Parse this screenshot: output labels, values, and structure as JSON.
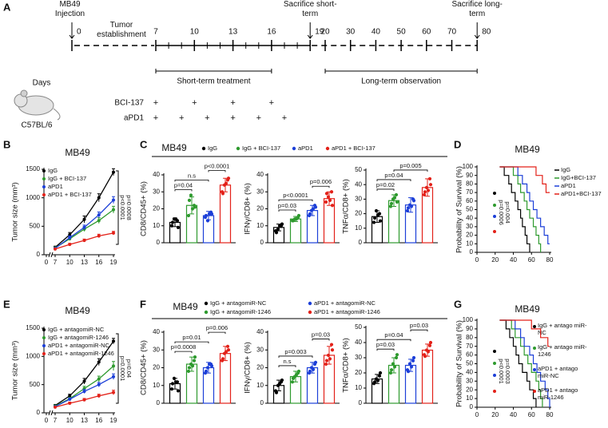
{
  "timeline": {
    "panel": "A",
    "days_label": "Days",
    "strain": "C57BL/6",
    "injection": {
      "label": "MB49 Injection",
      "day": 0
    },
    "establishment": "Tumor establishment",
    "ticks": [
      0,
      7,
      10,
      13,
      16,
      19,
      20,
      30,
      40,
      50,
      60,
      70,
      80
    ],
    "sacrifices": [
      {
        "label": "Sacrifice short-term",
        "day": 19
      },
      {
        "label": "Sacrifice long-term",
        "day": 80
      }
    ],
    "phases": [
      {
        "label": "Short-term treatment",
        "start": 7,
        "end": 16
      },
      {
        "label": "Long-term observation",
        "start": 20,
        "end": 80
      }
    ],
    "treatments": [
      {
        "label": "BCI-137",
        "mark": "+",
        "days": [
          7,
          10,
          13,
          16
        ]
      },
      {
        "label": "aPD1",
        "mark": "+",
        "days": [
          7,
          9,
          11,
          13,
          15,
          17
        ]
      }
    ]
  },
  "chart_data": [
    {
      "type": "line",
      "panel": "B",
      "title": "MB49",
      "ylabel": "Tumor size (mm³)",
      "x": [
        7,
        10,
        13,
        16,
        19
      ],
      "xlim": [
        0,
        19
      ],
      "xticks": [
        0,
        7,
        10,
        13,
        16,
        19
      ],
      "ylim": [
        0,
        1500
      ],
      "yticks": [
        0,
        500,
        1000,
        1500
      ],
      "series": [
        {
          "name": "IgG",
          "color": "#000000",
          "values": [
            130,
            350,
            620,
            1000,
            1450
          ],
          "errors": [
            20,
            40,
            60,
            70,
            60
          ]
        },
        {
          "name": "IgG + BCI-137",
          "color": "#2e9a2e",
          "values": [
            120,
            280,
            450,
            600,
            790
          ],
          "errors": [
            15,
            30,
            40,
            50,
            60
          ]
        },
        {
          "name": "aPD1",
          "color": "#1c3fd8",
          "values": [
            110,
            300,
            480,
            700,
            960
          ],
          "errors": [
            15,
            30,
            40,
            50,
            60
          ]
        },
        {
          "name": "aPD1 + BCI-137",
          "color": "#e32119",
          "values": [
            100,
            180,
            250,
            330,
            380
          ],
          "errors": [
            10,
            20,
            25,
            30,
            30
          ]
        }
      ],
      "annotations": [
        "p<0.0001",
        "p=0.0008"
      ]
    },
    {
      "type": "bar",
      "panel": "C",
      "title": "MB49",
      "groups": [
        {
          "name": "IgG",
          "color": "#000000"
        },
        {
          "name": "IgG + BCI-137",
          "color": "#2e9a2e"
        },
        {
          "name": "aPD1",
          "color": "#1c3fd8"
        },
        {
          "name": "aPD1 + BCI-137",
          "color": "#e32119"
        }
      ],
      "subplots": [
        {
          "ylabel": "CD8/CD45+ (%)",
          "ylim": [
            0,
            40
          ],
          "yticks": [
            0,
            10,
            20,
            30,
            40
          ],
          "values": [
            12,
            22,
            16,
            34
          ],
          "errors": [
            2.5,
            5,
            2.5,
            4
          ],
          "points": [
            [
              10,
              13,
              14,
              9,
              12,
              14
            ],
            [
              16,
              22,
              28,
              21,
              25,
              20
            ],
            [
              15,
              18,
              13,
              17,
              16,
              17
            ],
            [
              30,
              37,
              34,
              38,
              29,
              35
            ]
          ],
          "annotations": [
            "p=0.04",
            "n.s",
            "p<0.0001"
          ]
        },
        {
          "ylabel": "IFNγ/CD8+ (%)",
          "ylim": [
            0,
            40
          ],
          "yticks": [
            0,
            10,
            20,
            30,
            40
          ],
          "values": [
            9,
            14,
            19,
            26
          ],
          "errors": [
            2,
            1.5,
            3,
            4
          ],
          "points": [
            [
              7,
              10,
              8,
              11,
              6,
              10
            ],
            [
              13,
              15,
              14,
              16,
              13,
              14
            ],
            [
              16,
              22,
              19,
              21,
              17,
              20
            ],
            [
              24,
              30,
              27,
              22,
              29,
              25
            ]
          ],
          "annotations": [
            "p=0.03",
            "p<0.0001",
            "p=0.006"
          ]
        },
        {
          "ylabel": "TNFα/CD8+ (%)",
          "ylim": [
            0,
            50
          ],
          "yticks": [
            0,
            10,
            20,
            30,
            40,
            50
          ],
          "values": [
            18,
            29,
            26,
            38
          ],
          "errors": [
            4,
            4,
            5,
            6
          ],
          "points": [
            [
              14,
              20,
              22,
              15,
              17,
              19
            ],
            [
              25,
              33,
              30,
              28,
              27,
              31
            ],
            [
              22,
              30,
              26,
              29,
              24,
              25
            ],
            [
              33,
              44,
              38,
              40,
              35,
              36
            ]
          ],
          "annotations": [
            "p=0.02",
            "p=0.04",
            "p=0.005"
          ]
        }
      ]
    },
    {
      "type": "survival",
      "panel": "D",
      "title": "MB49",
      "ylabel": "Probability of Survival (%)",
      "xlim": [
        0,
        80
      ],
      "xticks": [
        0,
        20,
        40,
        60,
        80
      ],
      "ylim": [
        0,
        100
      ],
      "yticks": [
        0,
        10,
        20,
        30,
        40,
        50,
        60,
        70,
        80,
        90,
        100
      ],
      "series": [
        {
          "name": "IgG",
          "color": "#000000",
          "x": [
            25,
            30,
            35,
            38,
            42,
            45,
            48,
            50,
            53,
            55,
            58
          ],
          "values": [
            100,
            90,
            80,
            70,
            60,
            50,
            40,
            30,
            20,
            10,
            0
          ]
        },
        {
          "name": "IgG+BCI-137",
          "color": "#2e9a2e",
          "x": [
            25,
            40,
            45,
            48,
            52,
            55,
            58,
            62,
            65,
            68,
            70
          ],
          "values": [
            100,
            90,
            80,
            70,
            60,
            50,
            40,
            30,
            20,
            10,
            0
          ]
        },
        {
          "name": "aPD1",
          "color": "#1c3fd8",
          "x": [
            25,
            45,
            50,
            55,
            58,
            62,
            66,
            70,
            74,
            78,
            80
          ],
          "values": [
            100,
            90,
            80,
            70,
            60,
            50,
            40,
            30,
            20,
            10,
            10
          ]
        },
        {
          "name": "aPD1+BCI-137",
          "color": "#e32119",
          "x": [
            25,
            65,
            72,
            76,
            80
          ],
          "values": [
            100,
            90,
            80,
            70,
            70
          ]
        }
      ],
      "annotations": [
        "p=0.0006",
        "p=0.004"
      ]
    },
    {
      "type": "line",
      "panel": "E",
      "title": "MB49",
      "ylabel": "Tumor size (mm³)",
      "x": [
        7,
        10,
        13,
        16,
        19
      ],
      "xlim": [
        0,
        19
      ],
      "xticks": [
        0,
        7,
        10,
        13,
        16,
        19
      ],
      "ylim": [
        0,
        1500
      ],
      "yticks": [
        0,
        500,
        1000,
        1500
      ],
      "series": [
        {
          "name": "IgG + antagomiR-NC",
          "color": "#000000",
          "values": [
            130,
            300,
            560,
            900,
            1270
          ],
          "errors": [
            15,
            30,
            50,
            60,
            50
          ]
        },
        {
          "name": "IgG + antagomiR-1246",
          "color": "#2e9a2e",
          "values": [
            120,
            250,
            430,
            600,
            830
          ],
          "errors": [
            15,
            25,
            40,
            50,
            80
          ]
        },
        {
          "name": "aPD1 + antagomiR-NC",
          "color": "#1c3fd8",
          "values": [
            110,
            240,
            380,
            500,
            640
          ],
          "errors": [
            10,
            25,
            35,
            40,
            50
          ]
        },
        {
          "name": "aPD1 + antagomiR-1246",
          "color": "#e32119",
          "values": [
            100,
            170,
            230,
            300,
            360
          ],
          "errors": [
            10,
            20,
            25,
            30,
            40
          ]
        }
      ],
      "annotations": [
        "p=0.0001",
        "p=0.04"
      ]
    },
    {
      "type": "bar",
      "panel": "F",
      "title": "MB49",
      "groups": [
        {
          "name": "IgG + antagomiR-NC",
          "color": "#000000"
        },
        {
          "name": "IgG + antagomiR-1246",
          "color": "#2e9a2e"
        },
        {
          "name": "aPD1 + antagomiR-NC",
          "color": "#1c3fd8"
        },
        {
          "name": "aPD1 + antagomiR-1246",
          "color": "#e32119"
        }
      ],
      "subplots": [
        {
          "ylabel": "CD8/CD45+ (%)",
          "ylim": [
            0,
            40
          ],
          "yticks": [
            0,
            10,
            20,
            30,
            40
          ],
          "values": [
            11,
            22,
            20,
            28
          ],
          "errors": [
            3,
            4,
            3,
            4
          ],
          "points": [
            [
              8,
              12,
              14,
              7,
              11,
              12
            ],
            [
              18,
              24,
              22,
              26,
              20,
              21
            ],
            [
              17,
              22,
              20,
              21,
              18,
              22
            ],
            [
              24,
              32,
              28,
              30,
              25,
              29
            ]
          ],
          "annotations": [
            "p=0.0008",
            "p=0.01",
            "p=0.006"
          ]
        },
        {
          "ylabel": "IFNγ/CD8+ (%)",
          "ylim": [
            0,
            40
          ],
          "yticks": [
            0,
            10,
            20,
            30,
            40
          ],
          "values": [
            10,
            15,
            20,
            27
          ],
          "errors": [
            3,
            3,
            3,
            5
          ],
          "points": [
            [
              7,
              12,
              10,
              13,
              6,
              11
            ],
            [
              12,
              17,
              15,
              18,
              14,
              16
            ],
            [
              17,
              22,
              20,
              23,
              18,
              19
            ],
            [
              22,
              33,
              27,
              30,
              24,
              25
            ]
          ],
          "annotations": [
            "n.s",
            "p=0.003",
            "p=0.03"
          ]
        },
        {
          "ylabel": "TNFα/CD8+ (%)",
          "ylim": [
            0,
            50
          ],
          "yticks": [
            0,
            10,
            20,
            30,
            40,
            50
          ],
          "values": [
            16,
            25,
            25,
            35
          ],
          "errors": [
            3,
            5,
            4,
            4
          ],
          "points": [
            [
              13,
              18,
              16,
              20,
              14,
              15
            ],
            [
              20,
              30,
              26,
              32,
              22,
              24
            ],
            [
              22,
              28,
              26,
              30,
              21,
              24
            ],
            [
              32,
              38,
              35,
              40,
              31,
              34
            ]
          ],
          "annotations": [
            "p=0.03",
            "p=0.04",
            "p=0.03"
          ]
        }
      ]
    },
    {
      "type": "survival",
      "panel": "G",
      "title": "MB49",
      "ylabel": "Probability of Survival (%)",
      "xlim": [
        0,
        80
      ],
      "xticks": [
        0,
        20,
        40,
        60,
        80
      ],
      "ylim": [
        0,
        100
      ],
      "yticks": [
        0,
        10,
        20,
        30,
        40,
        50,
        60,
        70,
        80,
        90,
        100
      ],
      "series": [
        {
          "name": "IgG + antago miR-NC",
          "color": "#000000",
          "x": [
            25,
            32,
            36,
            40,
            43,
            46,
            50,
            55,
            58,
            62,
            65
          ],
          "values": [
            100,
            90,
            80,
            70,
            60,
            50,
            40,
            30,
            20,
            10,
            0
          ]
        },
        {
          "name": "IgG + antago miR-1246",
          "color": "#2e9a2e",
          "x": [
            25,
            38,
            42,
            48,
            52,
            56,
            60,
            65,
            68,
            70,
            72
          ],
          "values": [
            100,
            90,
            80,
            70,
            60,
            50,
            40,
            30,
            20,
            10,
            0
          ]
        },
        {
          "name": "aPD1 + antago miR-NC",
          "color": "#1c3fd8",
          "x": [
            25,
            42,
            48,
            52,
            58,
            62,
            66,
            70,
            75,
            78,
            80
          ],
          "values": [
            100,
            90,
            80,
            70,
            60,
            50,
            40,
            30,
            20,
            10,
            0
          ]
        },
        {
          "name": "aPD1 + antago miR-1246",
          "color": "#e32119",
          "x": [
            25,
            60,
            70,
            78,
            80
          ],
          "values": [
            100,
            90,
            80,
            70,
            70
          ]
        }
      ],
      "annotations": [
        "p<0.0001",
        "p=0.0003"
      ]
    }
  ]
}
